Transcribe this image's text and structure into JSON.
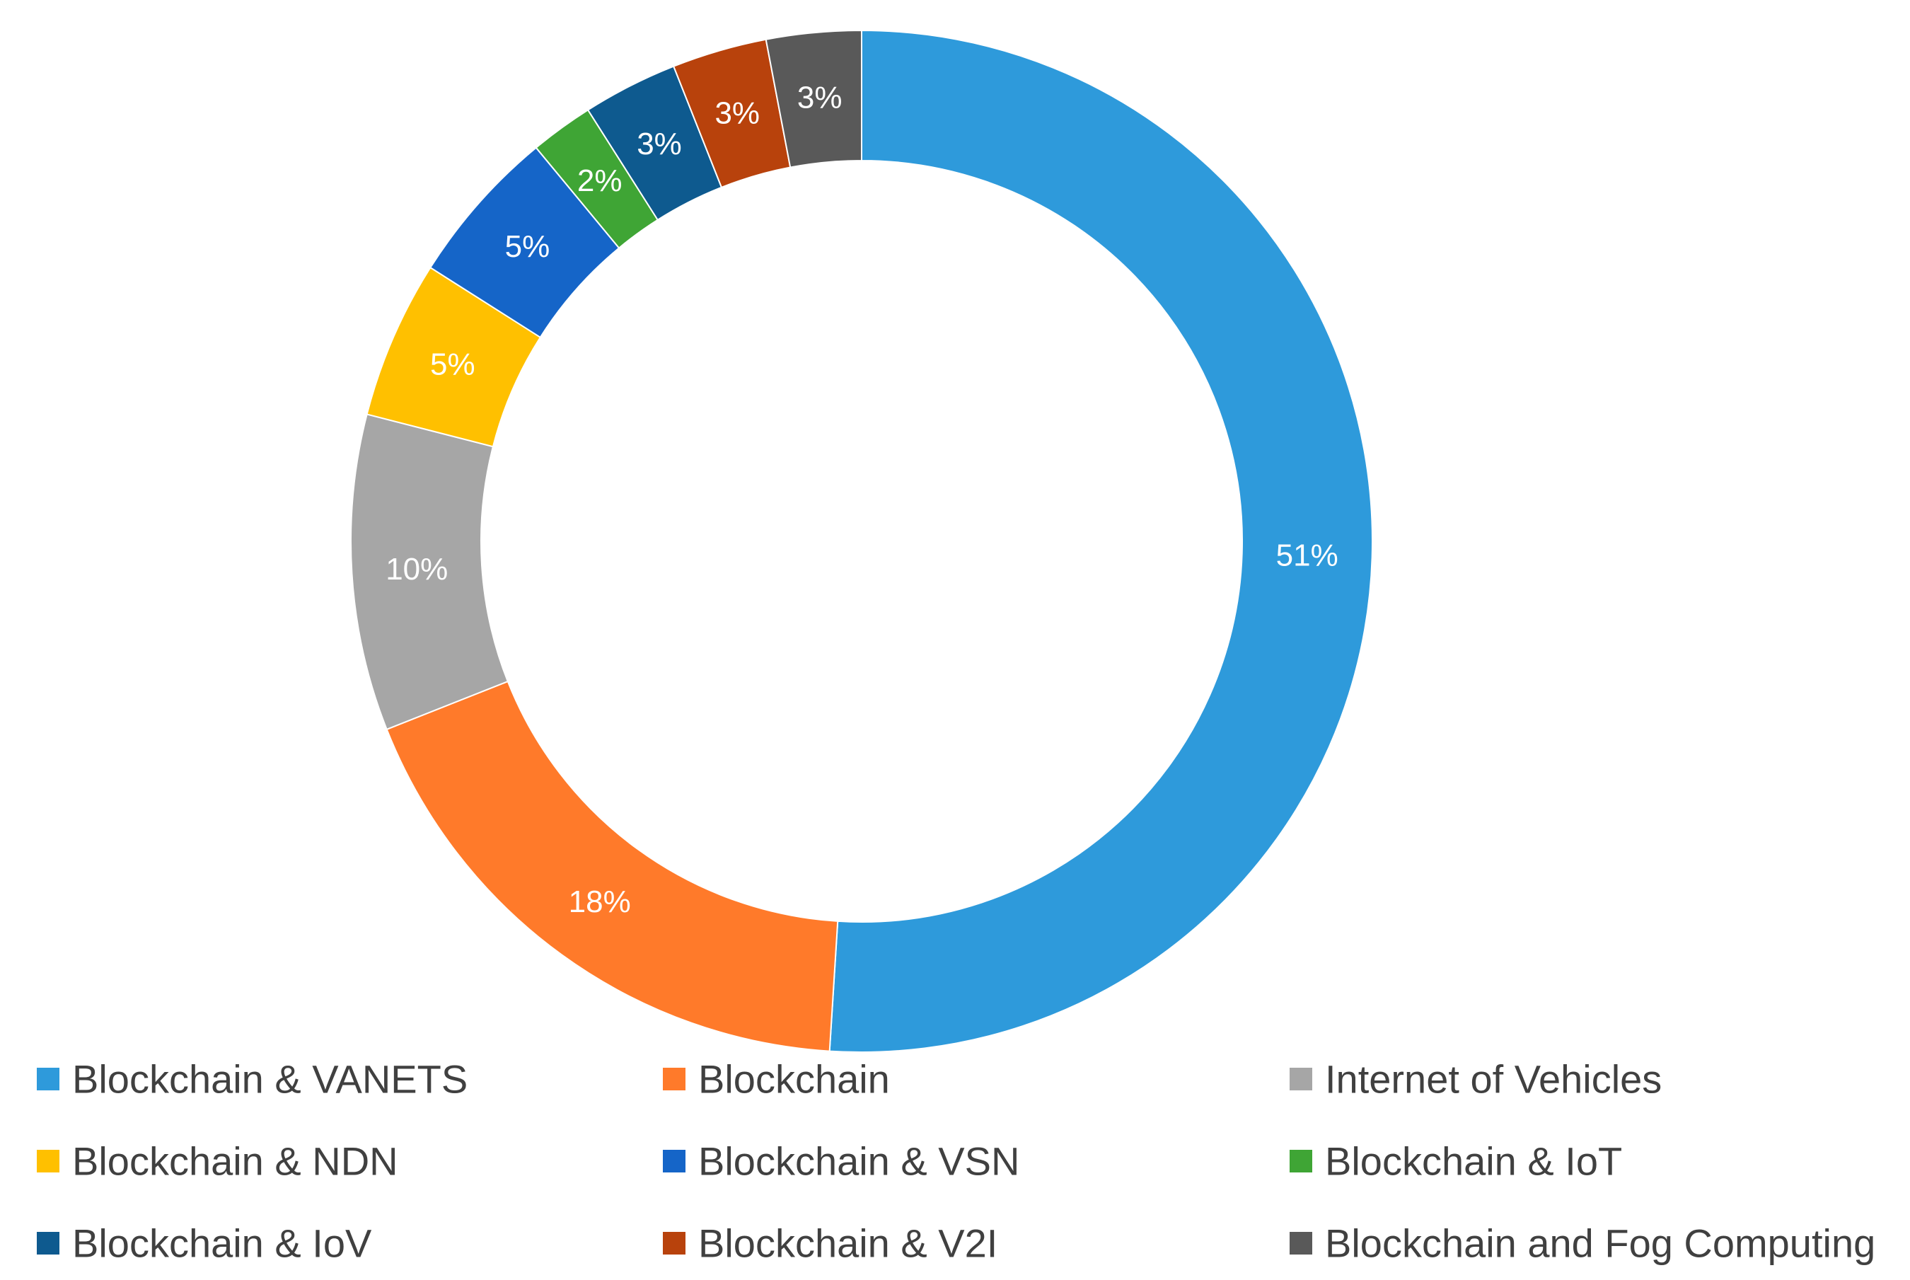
{
  "chart_data": {
    "type": "pie",
    "subtype": "donut",
    "title": "",
    "slices": [
      {
        "label": "Blockchain & VANETS",
        "value": 51,
        "display": "51%",
        "color": "#2E9ADB"
      },
      {
        "label": "Blockchain",
        "value": 18,
        "display": "18%",
        "color": "#FF7A2A"
      },
      {
        "label": "Internet of Vehicles",
        "value": 10,
        "display": "10%",
        "color": "#A6A6A6"
      },
      {
        "label": "Blockchain  & NDN",
        "value": 5,
        "display": "5%",
        "color": "#FFC000"
      },
      {
        "label": "Blockchain  & VSN",
        "value": 5,
        "display": "5%",
        "color": "#1565C8"
      },
      {
        "label": "Blockchain & IoT",
        "value": 2,
        "display": "2%",
        "color": "#3FA535"
      },
      {
        "label": "Blockchain & IoV",
        "value": 3,
        "display": "3%",
        "color": "#0E5A8F"
      },
      {
        "label": "Blockchain & V2I",
        "value": 3,
        "display": "3%",
        "color": "#B8420C"
      },
      {
        "label": "Blockchain and Fog Computing",
        "value": 3,
        "display": "3%",
        "color": "#595959"
      }
    ],
    "legend_position": "bottom"
  }
}
